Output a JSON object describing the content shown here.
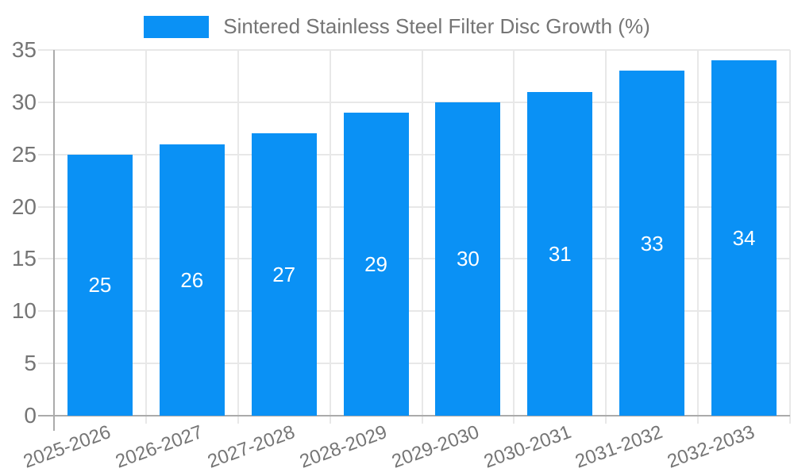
{
  "legend": {
    "label": "Sintered Stainless Steel Filter Disc Growth (%)"
  },
  "chart_data": {
    "type": "bar",
    "categories": [
      "2025-2026",
      "2026-2027",
      "2027-2028",
      "2028-2029",
      "2029-2030",
      "2030-2031",
      "2031-2032",
      "2032-2033"
    ],
    "series": [
      {
        "name": "Sintered Stainless Steel Filter Disc Growth (%)",
        "values": [
          25,
          26,
          27,
          29,
          30,
          31,
          33,
          34
        ],
        "color": "#0a91f5"
      }
    ],
    "xlabel": "",
    "ylabel": "",
    "ylim": [
      0,
      35
    ],
    "yticks": [
      0,
      5,
      10,
      15,
      20,
      25,
      30,
      35
    ],
    "grid": {
      "horizontal": true,
      "vertical": true
    },
    "legend_position": "top-center",
    "value_labels": {
      "show": true,
      "position": "inside-center",
      "color": "#ffffff"
    }
  },
  "colors": {
    "bar": "#0a91f5",
    "axis_line": "#ababab",
    "gridline": "#e8e8e8",
    "tick_label": "#757575",
    "value_label": "#ffffff",
    "background": "#ffffff"
  }
}
